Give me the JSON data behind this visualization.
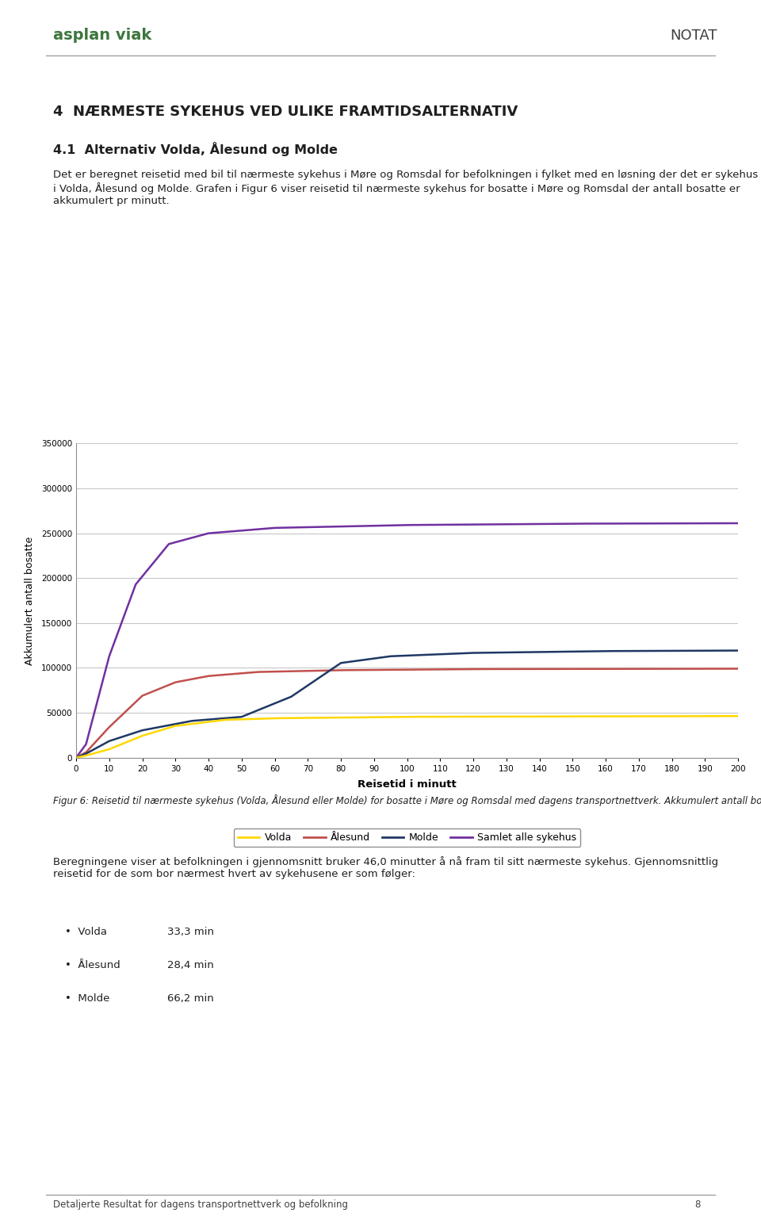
{
  "title_section": "4  NÆRMESTE SYKEHUS VED ULIKE FRAMTIDSALTERNATIV",
  "subtitle_section": "4.1  Alternativ Volda, Ålesund og Molde",
  "body_text_1": "Det er beregnet reisetid med bil til nærmeste sykehus i Møre og Romsdal for befolkningen i fylket med en løsning der det er sykehus i Volda, Ålesund og Molde. Grafen i Figur 6 viser reisetid til nærmeste sykehus for bosatte i Møre og Romsdal der antall bosatte er akkumulert pr minutt.",
  "header_notat": "NOTAT",
  "caption_text": "Figur 6: Reisetid til nærmeste sykehus (Volda, Ålesund eller Molde) for bosatte i Møre og Romsdal med dagens transportnettverk. Akkumulert antall bosatte pr minutt for hvert sykehus og samlet.",
  "body_text_2": "Beregningene viser at befolkningen i gjennomsnitt bruker 46,0 minutter å nå fram til sitt nærmeste sykehus. Gjennomsnittlig reisetid for de som bor nærmest hvert av sykehusene er som følger:",
  "bullet_items": [
    "Volda\t\t33,3 min",
    "Ålesund\t\t28,4 min",
    "Molde\t\t66,2 min"
  ],
  "footer_text": "Detaljerte Resultat for dagens transportnettverk og befolkning",
  "footer_page": "8",
  "xlabel": "Reisetid i minutt",
  "ylabel": "Akkumulert antall bosatte",
  "xlim": [
    0,
    200
  ],
  "ylim": [
    0,
    350000
  ],
  "yticks": [
    0,
    50000,
    100000,
    150000,
    200000,
    250000,
    300000,
    350000
  ],
  "xticks": [
    0,
    10,
    20,
    30,
    40,
    50,
    60,
    70,
    80,
    90,
    100,
    110,
    120,
    130,
    140,
    150,
    160,
    170,
    180,
    190,
    200
  ],
  "legend_labels": [
    "Volda",
    "Ålesund",
    "Molde",
    "Samlet alle sykehus"
  ],
  "line_colors": {
    "Volda": "#FFD700",
    "Alesund": "#C0504D",
    "Molde": "#1F3864",
    "Samlet": "#7030A0"
  },
  "background_color": "#FFFFFF",
  "plot_bg_color": "#FFFFFF",
  "grid_color": "#C8C8C8"
}
